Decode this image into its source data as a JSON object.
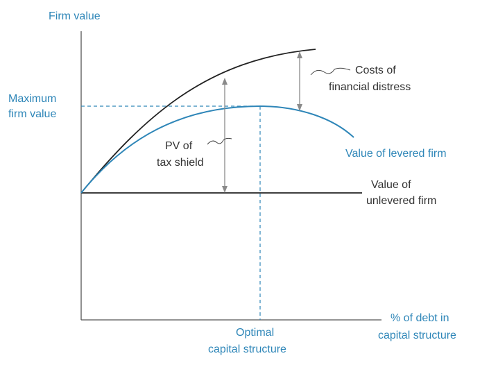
{
  "labels": {
    "y_axis": "Firm value",
    "x_axis_line1": "% of debt in",
    "x_axis_line2": "capital structure",
    "max_line1": "Maximum",
    "max_line2": "firm value",
    "optimal_line1": "Optimal",
    "optimal_line2": "capital structure",
    "costs_line1": "Costs of",
    "costs_line2": "financial distress",
    "pv_line1": "PV of",
    "pv_line2": "tax shield",
    "levered": "Value of levered firm",
    "unlevered_line1": "Value of",
    "unlevered_line2": "unlevered firm"
  },
  "colors": {
    "blue": "#2e86b8",
    "black": "#222222",
    "arrow": "#8a8a8a"
  }
}
